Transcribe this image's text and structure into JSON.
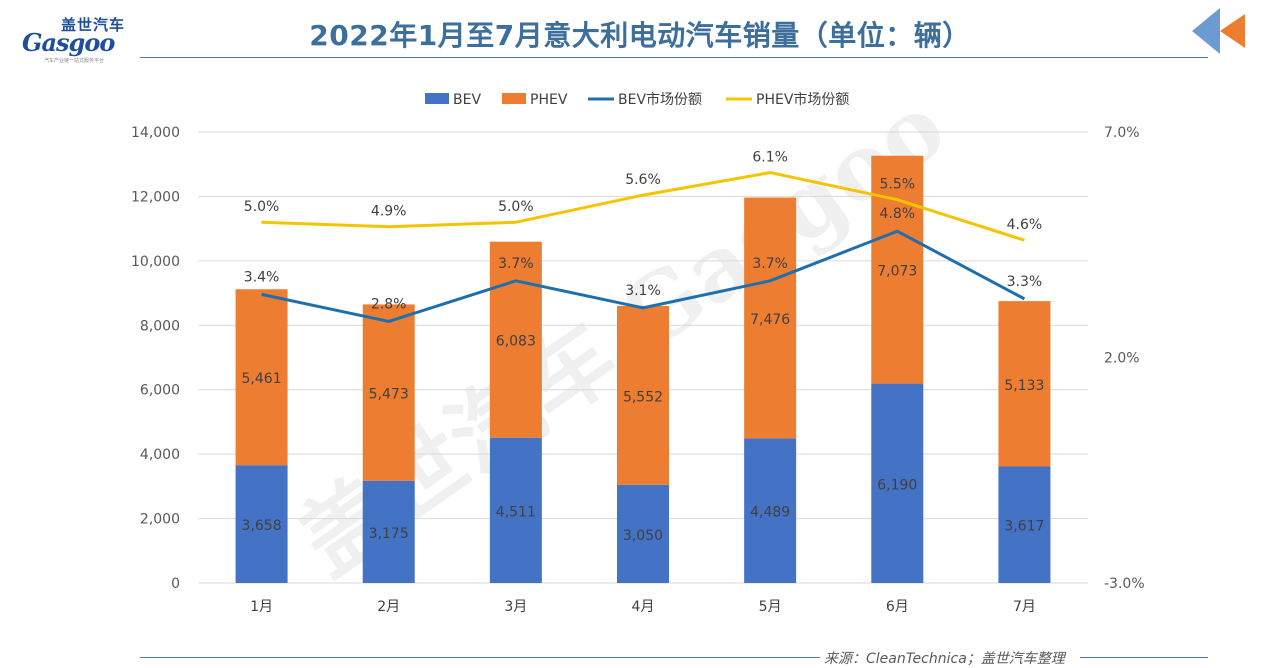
{
  "header": {
    "logo_cn": "盖世汽车",
    "logo_en": "Gasgoo",
    "logo_sub": "汽车产业链一站式服务平台",
    "title": "2022年1月至7月意大利电动汽车销量（单位：辆）"
  },
  "footer": {
    "source": "来源：CleanTechnica；盖世汽车整理"
  },
  "colors": {
    "bev": "#4472C4",
    "phev": "#ED7D31",
    "bev_line": "#1F6FAE",
    "phev_line": "#F5C400",
    "title": "#3D6F9C"
  },
  "chart_data": {
    "type": "bar",
    "stacked": true,
    "categories": [
      "1月",
      "2月",
      "3月",
      "4月",
      "5月",
      "6月",
      "7月"
    ],
    "series": [
      {
        "name": "BEV",
        "kind": "bar",
        "values": [
          3658,
          3175,
          4511,
          3050,
          4489,
          6190,
          3617
        ],
        "labels": [
          "3,658",
          "3,175",
          "4,511",
          "3,050",
          "4,489",
          "6,190",
          "3,617"
        ]
      },
      {
        "name": "PHEV",
        "kind": "bar",
        "values": [
          5461,
          5473,
          6083,
          5552,
          7476,
          7073,
          5133
        ],
        "labels": [
          "5,461",
          "5,473",
          "6,083",
          "5,552",
          "7,476",
          "7,073",
          "5,133"
        ]
      },
      {
        "name": "BEV市场份额",
        "kind": "line",
        "axis": "right",
        "values": [
          3.4,
          2.8,
          3.7,
          3.1,
          3.7,
          4.8,
          3.3
        ],
        "labels": [
          "3.4%",
          "2.8%",
          "3.7%",
          "3.1%",
          "3.7%",
          "4.8%",
          "3.3%"
        ]
      },
      {
        "name": "PHEV市场份额",
        "kind": "line",
        "axis": "right",
        "values": [
          5.0,
          4.9,
          5.0,
          5.6,
          6.1,
          5.5,
          4.6
        ],
        "labels": [
          "5.0%",
          "4.9%",
          "5.0%",
          "5.6%",
          "6.1%",
          "5.5%",
          "4.6%"
        ]
      }
    ],
    "y_left": {
      "min": 0,
      "max": 14000,
      "ticks": [
        0,
        2000,
        4000,
        6000,
        8000,
        10000,
        12000,
        14000
      ],
      "tick_labels": [
        "0",
        "2,000",
        "4,000",
        "6,000",
        "8,000",
        "10,000",
        "12,000",
        "14,000"
      ]
    },
    "y_right": {
      "min": -3,
      "max": 7,
      "ticks": [
        -3,
        2,
        7
      ],
      "tick_labels": [
        "-3.0%",
        "2.0%",
        "7.0%"
      ]
    },
    "legend": [
      "BEV",
      "PHEV",
      "BEV市场份额",
      "PHEV市场份额"
    ],
    "legend_position": "top",
    "watermark": "盖世汽车 Gasgoo",
    "grid": true
  }
}
